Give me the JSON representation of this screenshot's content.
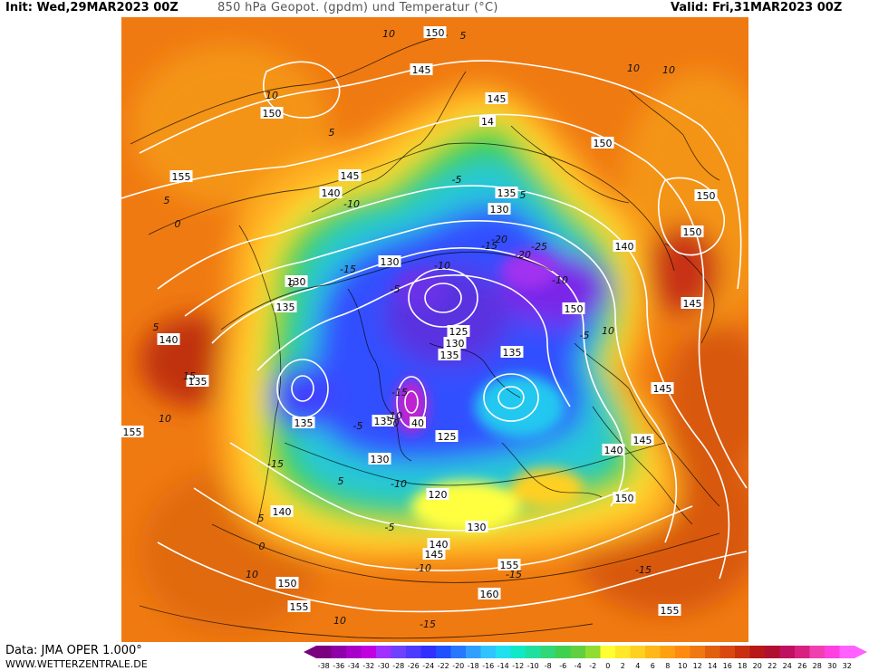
{
  "header": {
    "init": "Init: Wed,29MAR2023 00Z",
    "title": "850 hPa Geopot. (gpdm) und Temperatur (°C)",
    "valid": "Valid: Fri,31MAR2023 00Z"
  },
  "footer": {
    "data_source": "Data: JMA OPER 1.000°",
    "website": "WWW.WETTERZENTRALE.DE"
  },
  "legend": {
    "ticks": [
      "-38",
      "-36",
      "-34",
      "-32",
      "-30",
      "-28",
      "-26",
      "-24",
      "-22",
      "-20",
      "-18",
      "-16",
      "-14",
      "-12",
      "-10",
      "-8",
      "-6",
      "-4",
      "-2",
      "0",
      "2",
      "4",
      "6",
      "8",
      "10",
      "12",
      "14",
      "16",
      "18",
      "20",
      "22",
      "24",
      "26",
      "28",
      "30",
      "32"
    ],
    "colors": [
      "#7a0080",
      "#8f00a8",
      "#a800c8",
      "#c000e0",
      "#a030ff",
      "#7040ff",
      "#4d3cff",
      "#3030ff",
      "#2050ff",
      "#2878ff",
      "#30a0ff",
      "#30c4ff",
      "#20e0f0",
      "#10e8c8",
      "#20e0a0",
      "#30d878",
      "#40d050",
      "#60d040",
      "#90dc30",
      "#ffff33",
      "#ffe82a",
      "#ffd020",
      "#ffb818",
      "#ffa010",
      "#ff8a10",
      "#f07810",
      "#e06010",
      "#d84810",
      "#c83010",
      "#b81818",
      "#b01030",
      "#c01060",
      "#d82080",
      "#f040b0",
      "#ff40e0",
      "#ff60ff"
    ]
  },
  "geopotential_labels": [
    {
      "text": "150"
    },
    {
      "text": "145"
    },
    {
      "text": "145"
    },
    {
      "text": "14"
    },
    {
      "text": "150"
    },
    {
      "text": "150"
    },
    {
      "text": "155"
    },
    {
      "text": "145"
    },
    {
      "text": "140"
    },
    {
      "text": "135"
    },
    {
      "text": "130"
    },
    {
      "text": "150"
    },
    {
      "text": "150"
    },
    {
      "text": "140"
    },
    {
      "text": "130"
    },
    {
      "text": "130"
    },
    {
      "text": "135"
    },
    {
      "text": "150"
    },
    {
      "text": "145"
    },
    {
      "text": "140"
    },
    {
      "text": "135"
    },
    {
      "text": "125"
    },
    {
      "text": "130"
    },
    {
      "text": "135"
    },
    {
      "text": "135"
    },
    {
      "text": "145"
    },
    {
      "text": "135"
    },
    {
      "text": "135"
    },
    {
      "text": "40"
    },
    {
      "text": "125"
    },
    {
      "text": "155"
    },
    {
      "text": "130"
    },
    {
      "text": "140"
    },
    {
      "text": "145"
    },
    {
      "text": "120"
    },
    {
      "text": "150"
    },
    {
      "text": "140"
    },
    {
      "text": "130"
    },
    {
      "text": "140"
    },
    {
      "text": "145"
    },
    {
      "text": "155"
    },
    {
      "text": "150"
    },
    {
      "text": "160"
    },
    {
      "text": "155"
    },
    {
      "text": "155"
    }
  ],
  "temperature_labels": [
    {
      "text": "5"
    },
    {
      "text": "10"
    },
    {
      "text": "10"
    },
    {
      "text": "10"
    },
    {
      "text": "10"
    },
    {
      "text": "5"
    },
    {
      "text": "5"
    },
    {
      "text": "5"
    },
    {
      "text": "0"
    },
    {
      "text": "-10"
    },
    {
      "text": "-5"
    },
    {
      "text": "-10"
    },
    {
      "text": "5"
    },
    {
      "text": "0"
    },
    {
      "text": "-15"
    },
    {
      "text": "-5"
    },
    {
      "text": "-15"
    },
    {
      "text": "-20"
    },
    {
      "text": "-25"
    },
    {
      "text": "-20"
    },
    {
      "text": "-10"
    },
    {
      "text": "-5"
    },
    {
      "text": "15"
    },
    {
      "text": "10"
    },
    {
      "text": "-15"
    },
    {
      "text": "-10"
    },
    {
      "text": "-5"
    },
    {
      "text": "0"
    },
    {
      "text": "5"
    },
    {
      "text": "-10"
    },
    {
      "text": "-5"
    },
    {
      "text": "10"
    },
    {
      "text": "-15"
    },
    {
      "text": "5"
    },
    {
      "text": "10"
    },
    {
      "text": "-10"
    },
    {
      "text": "-15"
    },
    {
      "text": "-15"
    },
    {
      "text": "0"
    },
    {
      "text": "10"
    },
    {
      "text": "-15"
    }
  ]
}
